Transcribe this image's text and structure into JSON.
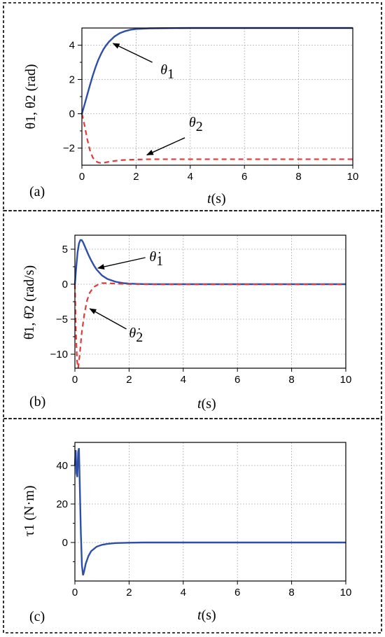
{
  "chart_data": [
    {
      "type": "line",
      "panel_label": "(a)",
      "xlabel_italic": "t",
      "xlabel_unit": "(s)",
      "ylabel_tex": "θ1, θ2 (rad)",
      "xlim": [
        0,
        10
      ],
      "ylim": [
        -3,
        5
      ],
      "xticks": [
        0,
        2,
        4,
        6,
        8,
        10
      ],
      "yticks": [
        -2,
        0,
        2,
        4
      ],
      "grid": true,
      "series": [
        {
          "name": "θ1",
          "style": "solid",
          "color": "#2e4ea8",
          "x": [
            0,
            0.1,
            0.2,
            0.3,
            0.4,
            0.5,
            0.6,
            0.7,
            0.8,
            0.9,
            1.0,
            1.2,
            1.4,
            1.6,
            1.8,
            2.0,
            2.5,
            3.0,
            4.0,
            5.0,
            6.0,
            7.0,
            8.0,
            9.0,
            10.0
          ],
          "y": [
            0,
            0.55,
            1.12,
            1.68,
            2.22,
            2.7,
            3.12,
            3.47,
            3.77,
            4.0,
            4.2,
            4.5,
            4.7,
            4.82,
            4.9,
            4.94,
            4.98,
            4.99,
            5.0,
            5.0,
            5.0,
            5.0,
            5.0,
            5.0,
            5.0
          ]
        },
        {
          "name": "θ2",
          "style": "dashed",
          "color": "#e03a3a",
          "x": [
            0,
            0.1,
            0.2,
            0.3,
            0.4,
            0.5,
            0.6,
            0.7,
            0.8,
            1.0,
            1.2,
            1.5,
            2.0,
            2.5,
            3.0,
            4.0,
            5.0,
            6.0,
            7.0,
            8.0,
            9.0,
            10.0
          ],
          "y": [
            0,
            -0.7,
            -1.5,
            -2.15,
            -2.55,
            -2.75,
            -2.84,
            -2.87,
            -2.86,
            -2.8,
            -2.75,
            -2.7,
            -2.67,
            -2.65,
            -2.65,
            -2.65,
            -2.65,
            -2.65,
            -2.65,
            -2.65,
            -2.65,
            -2.65
          ]
        }
      ],
      "annotations": [
        {
          "sym": "θ",
          "sub": "1",
          "dot": false,
          "x": 2.9,
          "y": 2.3,
          "arrow_x": 1.15,
          "arrow_y": 4.1,
          "arrow_from_x": 2.6,
          "arrow_from_y": 3.0
        },
        {
          "sym": "θ",
          "sub": "2",
          "dot": false,
          "x": 3.95,
          "y": -0.75,
          "arrow_x": 2.4,
          "arrow_y": -2.4,
          "arrow_from_x": 3.8,
          "arrow_from_y": -1.4
        }
      ]
    },
    {
      "type": "line",
      "panel_label": "(b)",
      "xlabel_italic": "t",
      "xlabel_unit": "(s)",
      "ylabel_tex": "θ̇1, θ̇2 (rad/s)",
      "xlim": [
        0,
        10
      ],
      "ylim": [
        -12,
        7
      ],
      "xticks": [
        0,
        2,
        4,
        6,
        8,
        10
      ],
      "yticks": [
        -10,
        -5,
        0,
        5
      ],
      "grid": true,
      "series": [
        {
          "name": "θ̇1",
          "style": "solid",
          "color": "#2e4ea8",
          "x": [
            0,
            0.05,
            0.1,
            0.15,
            0.2,
            0.25,
            0.3,
            0.4,
            0.5,
            0.6,
            0.7,
            0.8,
            1.0,
            1.2,
            1.5,
            1.8,
            2.0,
            2.5,
            3.0,
            4.0,
            5.0,
            6.0,
            7.0,
            8.0,
            9.0,
            10.0
          ],
          "y": [
            0,
            2.5,
            4.6,
            5.8,
            6.3,
            6.3,
            6.0,
            5.1,
            4.2,
            3.4,
            2.7,
            2.1,
            1.25,
            0.75,
            0.35,
            0.15,
            0.08,
            0.02,
            0,
            0,
            0,
            0,
            0,
            0,
            0,
            0
          ]
        },
        {
          "name": "θ̇2",
          "style": "dashed",
          "color": "#e03a3a",
          "x": [
            0,
            0.03,
            0.08,
            0.12,
            0.18,
            0.25,
            0.35,
            0.45,
            0.55,
            0.7,
            0.85,
            1.0,
            1.2,
            1.5,
            2.0,
            2.5,
            3.0,
            4.0,
            5.0,
            6.0,
            7.0,
            8.0,
            9.0,
            10.0
          ],
          "y": [
            0,
            -6.0,
            -11.0,
            -12.0,
            -10.0,
            -7.0,
            -4.2,
            -2.3,
            -1.2,
            -0.4,
            -0.05,
            0.15,
            0.15,
            0.08,
            0.02,
            0,
            0,
            0,
            0,
            0,
            0,
            0,
            0,
            0
          ]
        }
      ],
      "annotations": [
        {
          "sym": "θ",
          "sub": "1",
          "dot": true,
          "x": 2.75,
          "y": 3.3,
          "arrow_x": 0.85,
          "arrow_y": 2.3,
          "arrow_from_x": 2.6,
          "arrow_from_y": 3.8
        },
        {
          "sym": "θ",
          "sub": "2",
          "dot": true,
          "x": 2.0,
          "y": -7.6,
          "arrow_x": 0.55,
          "arrow_y": -3.5,
          "arrow_from_x": 1.9,
          "arrow_from_y": -6.4
        }
      ]
    },
    {
      "type": "line",
      "panel_label": "(c)",
      "xlabel_italic": "t",
      "xlabel_unit": "(s)",
      "ylabel_tex": "τ1 (N·m)",
      "xlim": [
        0,
        10
      ],
      "ylim": [
        -20,
        52
      ],
      "xticks": [
        0,
        2,
        4,
        6,
        8,
        10
      ],
      "yticks": [
        0,
        20,
        40
      ],
      "grid": true,
      "series": [
        {
          "name": "τ1",
          "style": "solid",
          "color": "#2e4ea8",
          "x": [
            0,
            0.03,
            0.06,
            0.09,
            0.12,
            0.15,
            0.18,
            0.22,
            0.26,
            0.3,
            0.34,
            0.4,
            0.5,
            0.6,
            0.8,
            1.0,
            1.2,
            1.5,
            2.0,
            2.5,
            3.0,
            4.0,
            5.0,
            6.0,
            7.0,
            8.0,
            9.0,
            10.0
          ],
          "y": [
            40,
            48,
            36,
            34,
            47,
            49,
            30,
            5,
            -12,
            -17,
            -15,
            -11,
            -7,
            -4.5,
            -2.2,
            -1.2,
            -0.7,
            -0.3,
            -0.1,
            0,
            0,
            0,
            0,
            0,
            0,
            0,
            0,
            0
          ]
        }
      ],
      "annotations": []
    }
  ]
}
